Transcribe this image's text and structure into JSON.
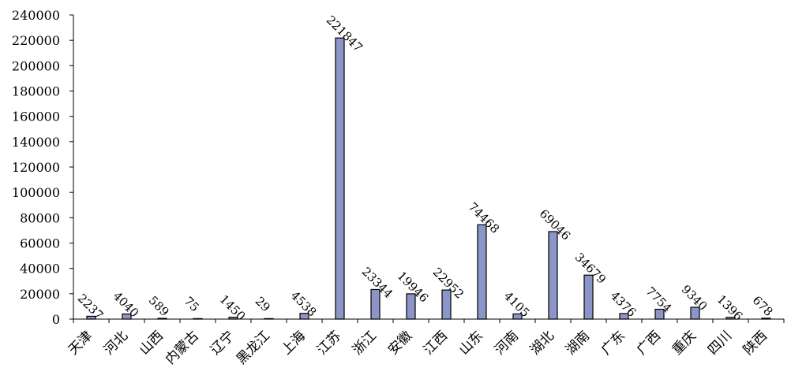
{
  "chart_data": {
    "type": "bar",
    "title": "",
    "xlabel": "",
    "ylabel": "",
    "ylim": [
      0,
      240000
    ],
    "yticks": [
      0,
      20000,
      40000,
      60000,
      80000,
      100000,
      120000,
      140000,
      160000,
      180000,
      200000,
      220000,
      240000
    ],
    "grid": false,
    "legend": "none",
    "bar_color": "#8c96c6",
    "categories": [
      "天津",
      "河北",
      "山西",
      "内蒙古",
      "辽宁",
      "黑龙江",
      "上海",
      "江苏",
      "浙江",
      "安徽",
      "江西",
      "山东",
      "河南",
      "湖北",
      "湖南",
      "广东",
      "广西",
      "重庆",
      "四川",
      "陕西"
    ],
    "values": [
      2237,
      4040,
      589,
      75,
      1450,
      29,
      4538,
      221847,
      23344,
      19946,
      22952,
      74468,
      4105,
      69046,
      34679,
      4376,
      7754,
      9340,
      1396,
      678
    ]
  }
}
